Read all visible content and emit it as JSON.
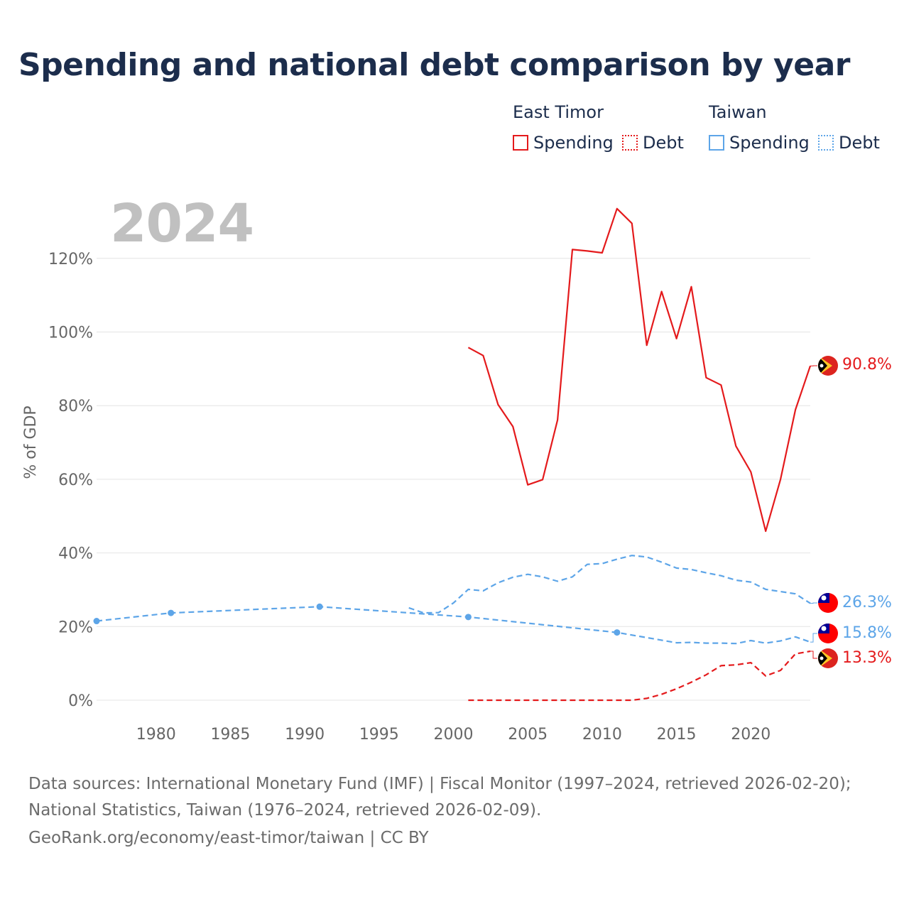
{
  "title": "Spending and national debt comparison by year",
  "legend": {
    "groups": [
      {
        "name": "East Timor",
        "color": "#e41a1c",
        "items": [
          {
            "label": "Spending",
            "style": "solid"
          },
          {
            "label": "Debt",
            "style": "dotted"
          }
        ]
      },
      {
        "name": "Taiwan",
        "color": "#5da5e8",
        "items": [
          {
            "label": "Spending",
            "style": "solid"
          },
          {
            "label": "Debt",
            "style": "dotted"
          }
        ]
      }
    ]
  },
  "year_watermark": "2024",
  "footer": {
    "line1": "Data sources: International Monetary Fund (IMF) | Fiscal Monitor (1997–2024, retrieved 2026-02-20);",
    "line2": "National Statistics, Taiwan (1976–2024, retrieved 2026-02-09).",
    "line3": "GeoRank.org/economy/east-timor/taiwan | CC BY"
  },
  "colors": {
    "east_timor": "#e41a1c",
    "taiwan": "#5da5e8",
    "grid": "#e4e4e4",
    "axis_text": "#666666"
  },
  "chart_data": {
    "type": "line",
    "title": "Spending and national debt comparison by year",
    "xlabel": "",
    "ylabel": "% of GDP",
    "xlim": [
      1976,
      2024
    ],
    "ylim": [
      0,
      130
    ],
    "x_ticks": [
      1980,
      1985,
      1990,
      1995,
      2000,
      2005,
      2010,
      2015,
      2020
    ],
    "y_ticks": [
      0,
      20,
      40,
      60,
      80,
      100,
      120
    ],
    "y_tick_labels": [
      "0%",
      "20%",
      "40%",
      "60%",
      "80%",
      "100%",
      "120%"
    ],
    "grid": true,
    "series": [
      {
        "name": "East Timor Spending",
        "color": "#e41a1c",
        "dash": "solid",
        "end_label": "90.8%",
        "points": [
          [
            2001,
            95.8
          ],
          [
            2002,
            93.6
          ],
          [
            2003,
            80.3
          ],
          [
            2004,
            74.3
          ],
          [
            2005,
            58.5
          ],
          [
            2006,
            59.9
          ],
          [
            2007,
            76.1
          ],
          [
            2008,
            122.4
          ],
          [
            2009,
            122
          ],
          [
            2010,
            121.5
          ],
          [
            2011,
            133.5
          ],
          [
            2012,
            129.5
          ],
          [
            2013,
            96.4
          ],
          [
            2014,
            111
          ],
          [
            2015,
            98.2
          ],
          [
            2016,
            112.3
          ],
          [
            2017,
            87.6
          ],
          [
            2018,
            85.6
          ],
          [
            2019,
            69
          ],
          [
            2020,
            62
          ],
          [
            2021,
            45.9
          ],
          [
            2022,
            60
          ],
          [
            2023,
            78.9
          ],
          [
            2024,
            90.8
          ]
        ]
      },
      {
        "name": "East Timor Debt",
        "color": "#e41a1c",
        "dash": "dashed",
        "end_label": "13.3%",
        "points": [
          [
            2001,
            0
          ],
          [
            2002,
            0
          ],
          [
            2003,
            0
          ],
          [
            2004,
            0
          ],
          [
            2005,
            0
          ],
          [
            2006,
            0
          ],
          [
            2007,
            0
          ],
          [
            2008,
            0
          ],
          [
            2009,
            0
          ],
          [
            2010,
            0
          ],
          [
            2011,
            0
          ],
          [
            2012,
            0
          ],
          [
            2013,
            0.5
          ],
          [
            2014,
            1.6
          ],
          [
            2015,
            3.1
          ],
          [
            2016,
            4.9
          ],
          [
            2017,
            6.9
          ],
          [
            2018,
            9.4
          ],
          [
            2019,
            9.6
          ],
          [
            2020,
            10.2
          ],
          [
            2021,
            6.6
          ],
          [
            2022,
            8.1
          ],
          [
            2023,
            12.6
          ],
          [
            2024,
            13.3
          ]
        ]
      },
      {
        "name": "Taiwan Spending",
        "color": "#5da5e8",
        "dash": "dashed-with-markers",
        "end_label": "15.8%",
        "markers": [
          1976,
          1981,
          1991,
          2001,
          2011
        ],
        "points": [
          [
            1976,
            21.5
          ],
          [
            1981,
            23.7
          ],
          [
            1991,
            25.4
          ],
          [
            2001,
            22.6
          ],
          [
            2011,
            18.4
          ],
          [
            2015,
            15.6
          ],
          [
            2016,
            15.7
          ],
          [
            2017,
            15.5
          ],
          [
            2018,
            15.5
          ],
          [
            2019,
            15.4
          ],
          [
            2020,
            16.2
          ],
          [
            2021,
            15.5
          ],
          [
            2022,
            16.1
          ],
          [
            2023,
            17.2
          ],
          [
            2024,
            15.8
          ]
        ]
      },
      {
        "name": "Taiwan Debt",
        "color": "#5da5e8",
        "dash": "dashed",
        "end_label": "26.3%",
        "points": [
          [
            1997,
            25.1
          ],
          [
            1998,
            23.7
          ],
          [
            1999,
            23.8
          ],
          [
            2000,
            26.4
          ],
          [
            2001,
            30.1
          ],
          [
            2002,
            29.7
          ],
          [
            2003,
            31.9
          ],
          [
            2004,
            33.4
          ],
          [
            2005,
            34.2
          ],
          [
            2006,
            33.5
          ],
          [
            2007,
            32.3
          ],
          [
            2008,
            33.5
          ],
          [
            2009,
            36.9
          ],
          [
            2010,
            37.1
          ],
          [
            2011,
            38.3
          ],
          [
            2012,
            39.3
          ],
          [
            2013,
            38.9
          ],
          [
            2014,
            37.5
          ],
          [
            2015,
            35.9
          ],
          [
            2016,
            35.5
          ],
          [
            2017,
            34.6
          ],
          [
            2018,
            33.8
          ],
          [
            2019,
            32.6
          ],
          [
            2020,
            32.1
          ],
          [
            2021,
            30.1
          ],
          [
            2022,
            29.5
          ],
          [
            2023,
            28.9
          ],
          [
            2024,
            26.3
          ]
        ]
      }
    ]
  }
}
